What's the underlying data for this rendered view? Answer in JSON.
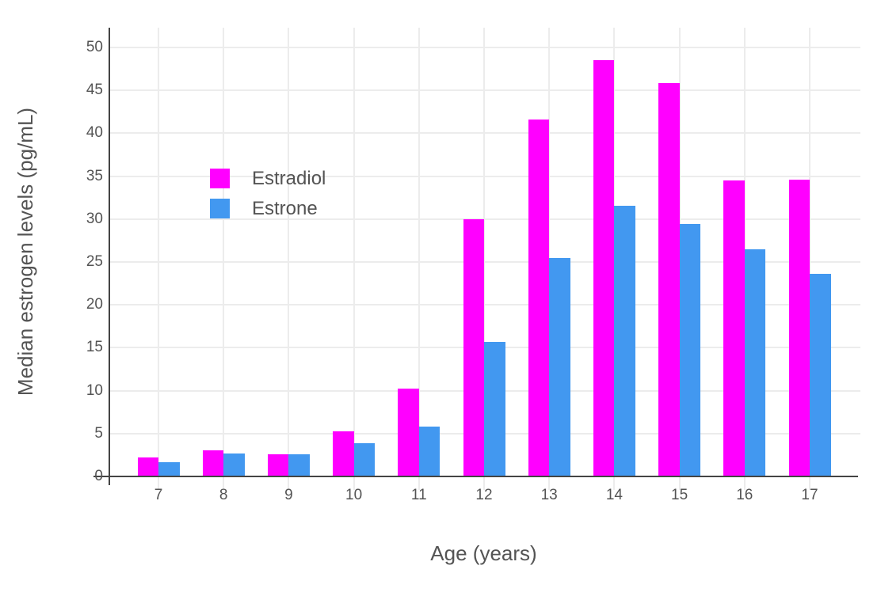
{
  "chart_data": {
    "type": "bar",
    "title": "",
    "xlabel": "Age (years)",
    "ylabel": "Median estrogen levels (pg/mL)",
    "categories": [
      "7",
      "8",
      "9",
      "10",
      "11",
      "12",
      "13",
      "14",
      "15",
      "16",
      "17"
    ],
    "series": [
      {
        "name": "Estradiol",
        "color": "#FF00FF",
        "values": [
          2.2,
          3.0,
          2.6,
          5.3,
          10.2,
          30.0,
          41.6,
          48.5,
          45.8,
          34.5,
          34.6
        ]
      },
      {
        "name": "Estrone",
        "color": "#4298F0",
        "values": [
          1.7,
          2.7,
          2.6,
          3.9,
          5.8,
          15.7,
          25.5,
          31.5,
          29.4,
          26.5,
          23.6
        ]
      }
    ],
    "ylim": [
      0,
      52.3
    ],
    "yticks": [
      0,
      5,
      10,
      15,
      20,
      25,
      30,
      35,
      40,
      45,
      50
    ],
    "grid": true,
    "legend_position": "inside-top-left",
    "bar_orientation": "vertical",
    "group_mode": "grouped"
  },
  "style_colors": {
    "estradiol": "#FF00FF",
    "estrone": "#4298F0",
    "gridline": "#ECECEC",
    "axis_line": "#444444",
    "text": "#545454",
    "background": "#FFFFFF"
  }
}
